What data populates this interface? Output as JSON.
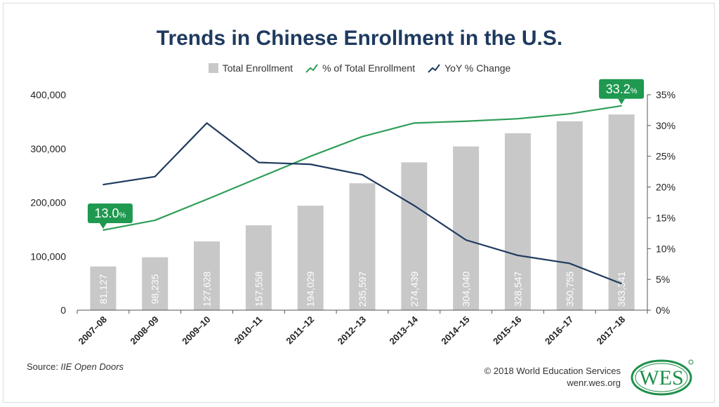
{
  "title": "Trends in Chinese Enrollment in the U.S.",
  "legend": {
    "total": "Total Enrollment",
    "pct": "% of Total Enrollment",
    "yoy": "YoY % Change"
  },
  "source_prefix": "Source: ",
  "source_name": "IIE Open Doors",
  "copyright": "© 2018 World Education Services",
  "website": "wenr.wes.org",
  "logo_text": "WES",
  "colors": {
    "bar": "#c8c8c8",
    "pct_line": "#2e9e58",
    "yoy_line": "#1e3a5f",
    "callout": "#1f9950",
    "title": "#1e3a5f"
  },
  "callouts": {
    "first": "13.0",
    "last": "33.2",
    "unit": "%"
  },
  "chart_data": {
    "type": "bar",
    "categories": [
      "2007–08",
      "2008–09",
      "2009–10",
      "2010–11",
      "2011–12",
      "2012–13",
      "2013–14",
      "2014–15",
      "2015–16",
      "2016–17",
      "2017–18"
    ],
    "series": [
      {
        "name": "Total Enrollment",
        "axis": "left",
        "values": [
          81127,
          98235,
          127628,
          157558,
          194029,
          235597,
          274439,
          304040,
          328547,
          350755,
          363341
        ],
        "value_labels": [
          "81,127",
          "98,235",
          "127,628",
          "157,558",
          "194,029",
          "235,597",
          "274,439",
          "304,040",
          "328,547",
          "350,755",
          "363,341"
        ]
      },
      {
        "name": "% of Total Enrollment",
        "axis": "right",
        "type": "line",
        "values": [
          13.0,
          14.6,
          18.0,
          21.5,
          25.0,
          28.2,
          30.4,
          30.7,
          31.1,
          31.9,
          33.2
        ]
      },
      {
        "name": "YoY % Change",
        "axis": "right",
        "type": "line",
        "values": [
          20.4,
          21.7,
          30.4,
          24.0,
          23.7,
          22.0,
          17.0,
          11.4,
          8.9,
          7.6,
          4.3
        ]
      }
    ],
    "ylim_left": [
      0,
      400000
    ],
    "yticks_left": [
      "0",
      "100,000",
      "200,000",
      "300,000",
      "400,000"
    ],
    "ylim_right": [
      0,
      35
    ],
    "yticks_right": [
      "0%",
      "5%",
      "10%",
      "15%",
      "20%",
      "25%",
      "30%",
      "35%"
    ],
    "grid": false,
    "legend_position": "top-center"
  }
}
